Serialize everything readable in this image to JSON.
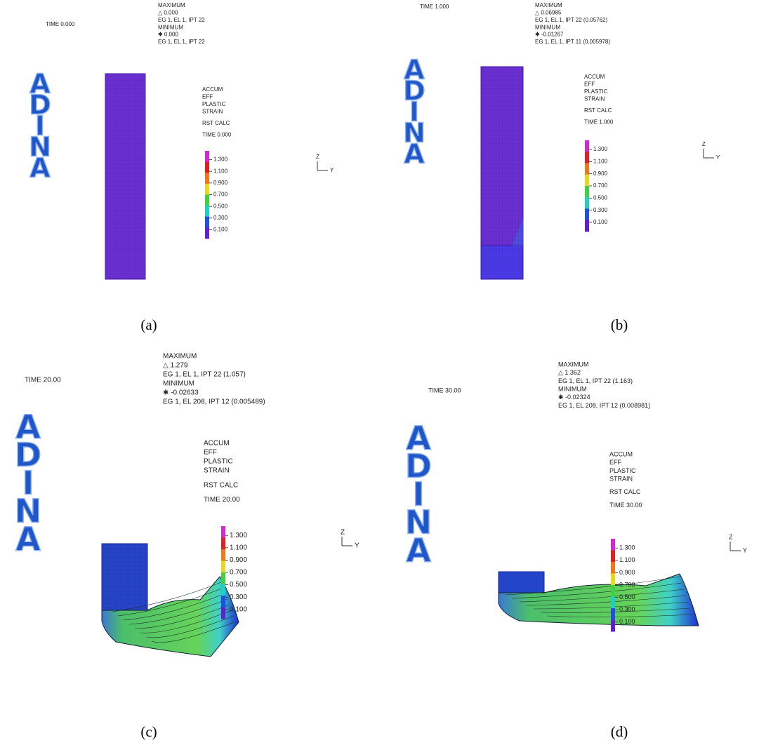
{
  "panels": [
    {
      "caption": "(a)",
      "time_label": "TIME 0.000",
      "maximum": {
        "title": "MAXIMUM",
        "value": "△ 0.000",
        "location": "EG 1, EL 1, IPT 22"
      },
      "minimum": {
        "title": "MINIMUM",
        "value": "✱ 0.000",
        "location": "EG 1, EL 1, IPT 22"
      },
      "logo": [
        "A",
        "D",
        "I",
        "N",
        "A"
      ],
      "result": [
        "ACCUM",
        "EFF",
        "PLASTIC",
        "STRAIN",
        "RST CALC",
        "TIME 0.000"
      ],
      "scale": [
        "1.300",
        "1.100",
        "0.900",
        "0.700",
        "0.500",
        "0.300",
        "0.100"
      ],
      "axes": {
        "z": "Z",
        "y": "Y"
      }
    },
    {
      "caption": "(b)",
      "time_label": "TIME 1.000",
      "maximum": {
        "title": "MAXIMUM",
        "value": "△ 0.06985",
        "location": "EG 1, EL 1, IPT 22 (0.05762)"
      },
      "minimum": {
        "title": "MINIMUM",
        "value": "✱ -0.01267",
        "location": "EG 1, EL 1, IPT 11 (0.005978)"
      },
      "logo": [
        "A",
        "D",
        "I",
        "N",
        "A"
      ],
      "result": [
        "ACCUM",
        "EFF",
        "PLASTIC",
        "STRAIN",
        "RST CALC",
        "TIME 1.000"
      ],
      "scale": [
        "1.300",
        "1.100",
        "0.900",
        "0.700",
        "0.500",
        "0.300",
        "0.100"
      ],
      "axes": {
        "z": "Z",
        "y": "Y"
      }
    },
    {
      "caption": "(c)",
      "time_label": "TIME 20.00",
      "maximum": {
        "title": "MAXIMUM",
        "value": "△ 1.279",
        "location": "EG 1, EL 1, IPT 22 (1.057)"
      },
      "minimum": {
        "title": "MINIMUM",
        "value": "✱ -0.02633",
        "location": "EG 1, EL 208, IPT 12 (0.005489)"
      },
      "logo": [
        "A",
        "D",
        "I",
        "N",
        "A"
      ],
      "result": [
        "ACCUM",
        "EFF",
        "PLASTIC",
        "STRAIN",
        "RST CALC",
        "TIME 20.00"
      ],
      "scale": [
        "1.300",
        "1.100",
        "0.900",
        "0.700",
        "0.500",
        "0.300",
        "0.100"
      ],
      "axes": {
        "z": "Z",
        "y": "Y"
      }
    },
    {
      "caption": "(d)",
      "time_label": "TIME 30.00",
      "maximum": {
        "title": "MAXIMUM",
        "value": "△ 1.362",
        "location": "EG 1, EL 1, IPT 22 (1.163)"
      },
      "minimum": {
        "title": "MINIMUM",
        "value": "✱ -0.02324",
        "location": "EG 1, EL 208, IPT 12 (0.008981)"
      },
      "logo": [
        "A",
        "D",
        "I",
        "N",
        "A"
      ],
      "result": [
        "ACCUM",
        "EFF",
        "PLASTIC",
        "STRAIN",
        "RST CALC",
        "TIME 30.00"
      ],
      "scale": [
        "1.300",
        "1.100",
        "0.900",
        "0.700",
        "0.500",
        "0.300",
        "0.100"
      ],
      "axes": {
        "z": "Z",
        "y": "Y"
      }
    }
  ]
}
